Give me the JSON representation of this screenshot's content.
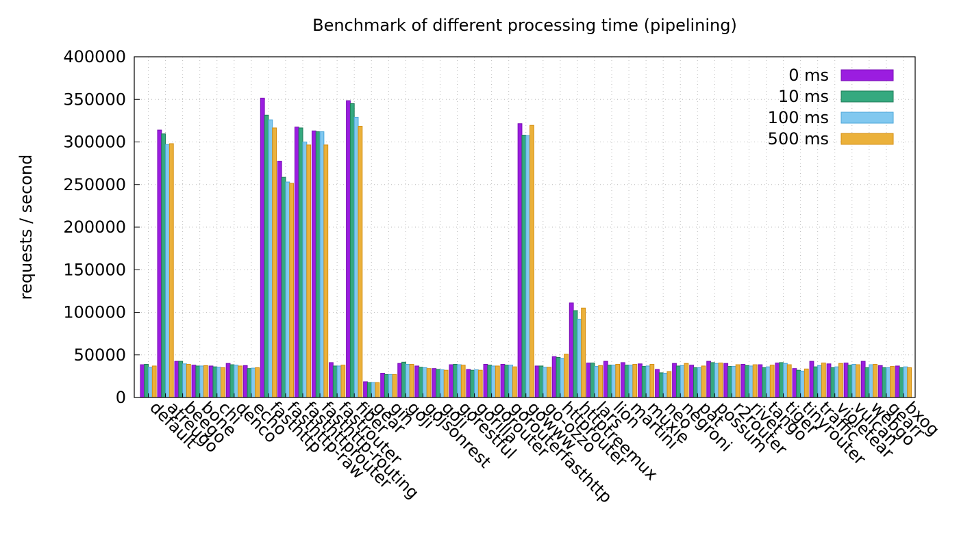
{
  "chart_data": {
    "type": "bar",
    "title": "Benchmark of different processing time (pipelining)",
    "xlabel": "",
    "ylabel": "requests / second",
    "ylim": [
      0,
      400000
    ],
    "yticks": [
      0,
      50000,
      100000,
      150000,
      200000,
      250000,
      300000,
      350000,
      400000
    ],
    "grid": true,
    "legend_position": "top-right",
    "categories": [
      "default",
      "atreugo",
      "beego",
      "bone",
      "chi",
      "denco",
      "echo",
      "fasthttp",
      "fasthttp-raw",
      "fasthttprouter",
      "fasthttp-routing",
      "fastrouter",
      "fiber",
      "gear",
      "gin",
      "goji",
      "gojsonrest",
      "goji",
      "gorestful",
      "gorilla",
      "gorouter",
      "gorouterfasthttp",
      "gowww",
      "go-ozzo",
      "httprouter",
      "httptreemux",
      "lars",
      "lion",
      "martini",
      "muxie",
      "neo",
      "negroni",
      "pat",
      "possum",
      "r2router",
      "rivet",
      "tango",
      "tiger",
      "tinyrouter",
      "traffic",
      "violetear",
      "vulcan",
      "webgo",
      "gearr",
      "bxog"
    ],
    "series": [
      {
        "name": "0 ms",
        "color": "#9b1de0",
        "values": [
          38500,
          314000,
          42500,
          38000,
          37000,
          40000,
          37500,
          351500,
          277500,
          317500,
          313000,
          41000,
          348500,
          18500,
          28500,
          40000,
          37000,
          34000,
          38500,
          33000,
          39000,
          39000,
          321500,
          37000,
          48000,
          111000,
          40500,
          42500,
          41000,
          39500,
          33000,
          40000,
          38000,
          42500,
          40000,
          39000,
          38500,
          40500,
          34000,
          42500,
          39500,
          40500,
          42500,
          37500,
          37000
        ]
      },
      {
        "name": "10 ms",
        "color": "#35a97f",
        "values": [
          39000,
          309500,
          42500,
          37000,
          36000,
          38500,
          34000,
          331500,
          258500,
          316500,
          312000,
          37000,
          345000,
          17500,
          27000,
          41500,
          35500,
          33000,
          39000,
          32000,
          38000,
          38000,
          308000,
          37000,
          47000,
          102000,
          40500,
          38000,
          38000,
          36500,
          29000,
          37000,
          35000,
          41000,
          36500,
          37500,
          35000,
          41000,
          32000,
          36000,
          35000,
          38000,
          35000,
          35000,
          35000
        ]
      },
      {
        "name": "100 ms",
        "color": "#81c8ef",
        "values": [
          35500,
          297000,
          39500,
          37000,
          35500,
          38000,
          34500,
          326000,
          253000,
          300000,
          312000,
          37000,
          329000,
          17500,
          27000,
          39000,
          35000,
          32500,
          38500,
          32500,
          37000,
          38000,
          307500,
          35500,
          46000,
          92000,
          36500,
          38000,
          38000,
          37000,
          28500,
          37500,
          35000,
          40000,
          36500,
          37000,
          36000,
          40000,
          31000,
          37500,
          36000,
          39000,
          38500,
          35000,
          36000
        ]
      },
      {
        "name": "500 ms",
        "color": "#ebb13b",
        "values": [
          37000,
          298000,
          39000,
          37500,
          35000,
          37000,
          35000,
          316500,
          251500,
          296500,
          296500,
          38000,
          318500,
          17500,
          27000,
          39000,
          34000,
          32000,
          38000,
          32000,
          37000,
          36000,
          319500,
          35500,
          51000,
          105000,
          37500,
          39000,
          39000,
          39000,
          30500,
          40000,
          37000,
          40500,
          38500,
          38500,
          38000,
          38500,
          33500,
          40500,
          40000,
          38500,
          39000,
          36500,
          35000
        ]
      }
    ]
  }
}
